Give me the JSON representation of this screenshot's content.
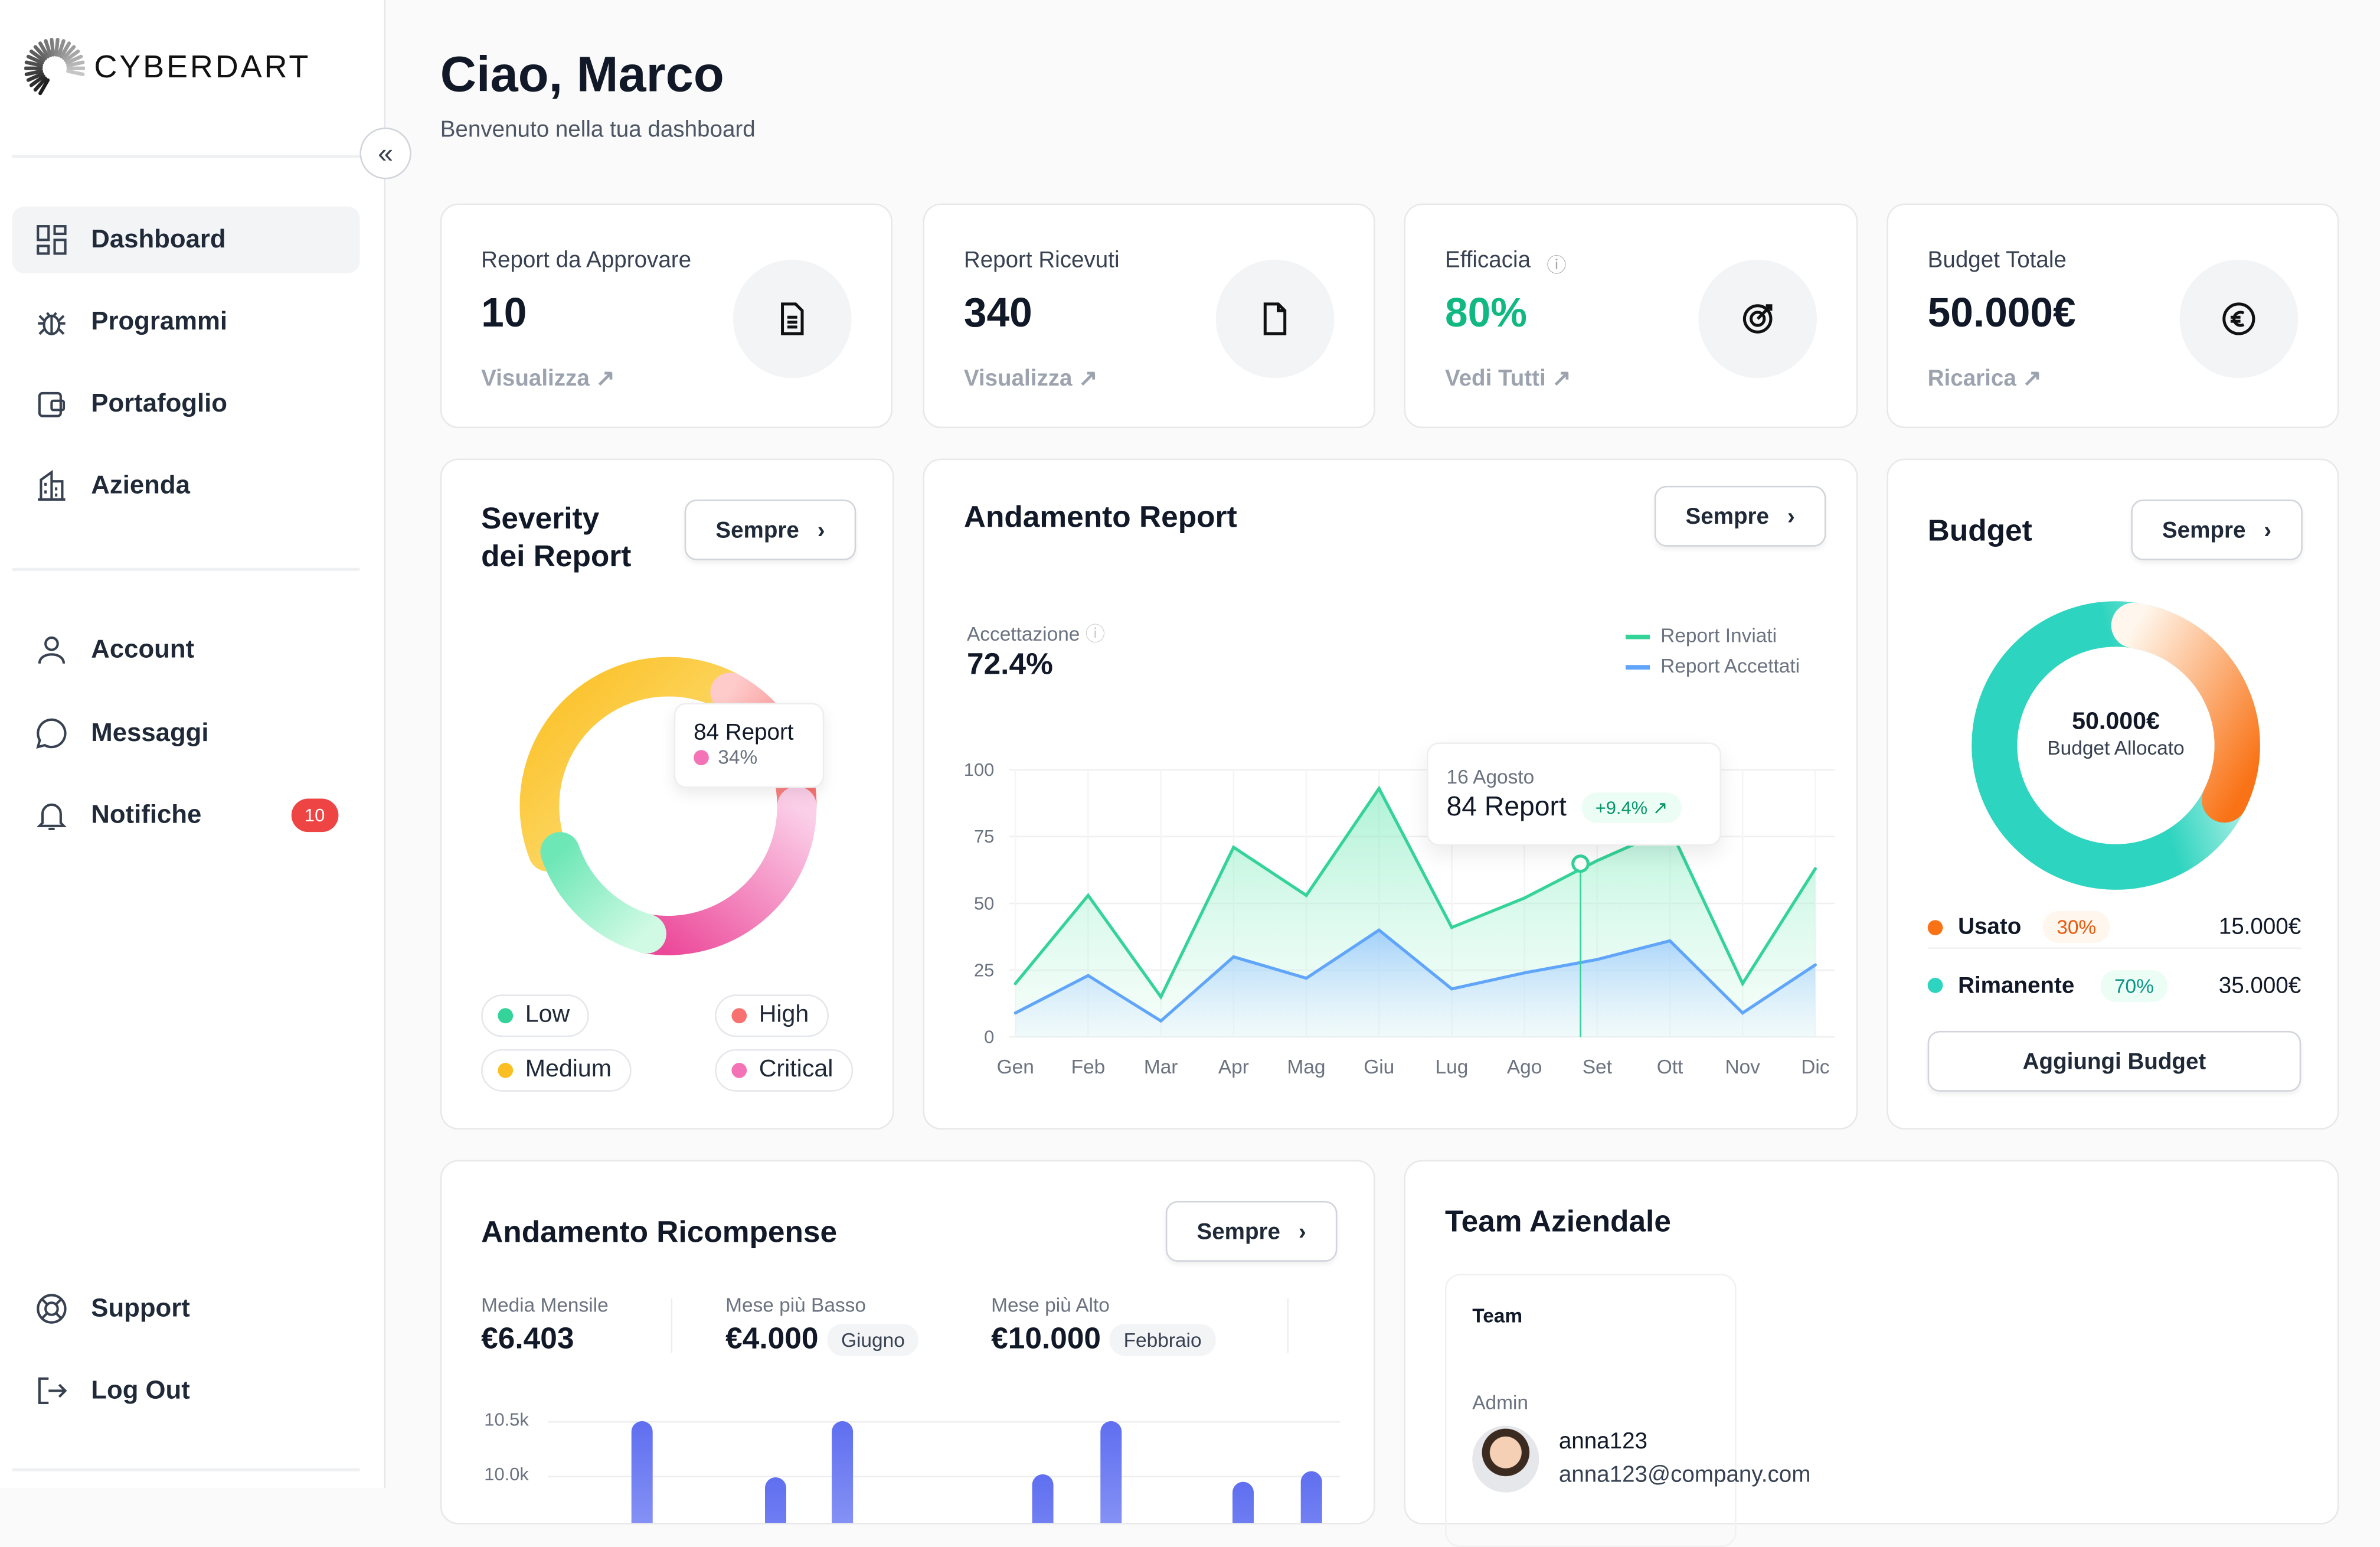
{
  "brand": {
    "logo_text": "CYBERDART"
  },
  "sidebar": {
    "items": [
      {
        "label": "Dashboard",
        "icon": "dashboard-icon"
      },
      {
        "label": "Programmi",
        "icon": "bug-icon"
      },
      {
        "label": "Portafoglio",
        "icon": "wallet-icon"
      },
      {
        "label": "Azienda",
        "icon": "building-icon"
      },
      {
        "label": "Account",
        "icon": "user-icon"
      },
      {
        "label": "Messaggi",
        "icon": "message-icon"
      },
      {
        "label": "Notifiche",
        "icon": "bell-icon",
        "badge": "10"
      },
      {
        "label": "Support",
        "icon": "lifebuoy-icon"
      },
      {
        "label": "Log Out",
        "icon": "logout-icon"
      }
    ]
  },
  "header": {
    "title": "Ciao, Marco",
    "subtitle": "Benvenuto nella tua dashboard"
  },
  "stats": [
    {
      "label": "Report da Approvare",
      "value": "10",
      "link": "Visualizza ↗",
      "icon": "document-text-icon"
    },
    {
      "label": "Report Ricevuti",
      "value": "340",
      "link": "Visualizza ↗",
      "icon": "document-icon"
    },
    {
      "label": "Efficacia",
      "value": "80%",
      "link": "Vedi Tutti ↗",
      "icon": "target-icon",
      "value_color": "#10b981"
    },
    {
      "label": "Budget Totale",
      "value": "50.000€",
      "link": "Ricarica ↗",
      "icon": "euro-icon"
    }
  ],
  "severity": {
    "title_line1": "Severity",
    "title_line2": "dei Report",
    "filter": "Sempre",
    "tooltip": {
      "value": "84 Report",
      "percent": "34%"
    },
    "legend": [
      {
        "label": "Low",
        "color": "#34d399"
      },
      {
        "label": "High",
        "color": "#f87171"
      },
      {
        "label": "Medium",
        "color": "#fbbf24"
      },
      {
        "label": "Critical",
        "color": "#f472b6"
      }
    ]
  },
  "andamento": {
    "title": "Andamento Report",
    "filter": "Sempre",
    "metric_label": "Accettazione",
    "metric_value": "72.4%",
    "tooltip": {
      "date": "16 Agosto",
      "value": "84 Report",
      "change": "+9.4% ↗"
    }
  },
  "chart_data": {
    "type": "area",
    "title": "Andamento Report",
    "categories": [
      "Gen",
      "Feb",
      "Mar",
      "Apr",
      "Mag",
      "Giu",
      "Lug",
      "Ago",
      "Set",
      "Ott",
      "Nov",
      "Dic"
    ],
    "yticks": [
      "0",
      "25",
      "50",
      "75",
      "100"
    ],
    "ylim": [
      0,
      100
    ],
    "legend_position": "top-right",
    "series": [
      {
        "name": "Report Inviati",
        "color": "#34d399",
        "values": [
          20,
          53,
          15,
          71,
          53,
          93,
          41,
          52,
          66,
          78,
          20,
          63
        ]
      },
      {
        "name": "Report Accettati",
        "color": "#60a5fa",
        "values": [
          9,
          23,
          6,
          30,
          22,
          40,
          18,
          24,
          29,
          36,
          9,
          27
        ]
      }
    ]
  },
  "budget": {
    "title": "Budget",
    "filter": "Sempre",
    "center_value": "50.000€",
    "center_label": "Budget Allocato",
    "used_fraction": 0.3,
    "rows": [
      {
        "label": "Usato",
        "percent": "30%",
        "amount": "15.000€",
        "color": "#f97316"
      },
      {
        "label": "Rimanente",
        "percent": "70%",
        "amount": "35.000€",
        "color": "#2dd4bf"
      }
    ],
    "button": "Aggiungi Budget"
  },
  "ricompense": {
    "title": "Andamento Ricompense",
    "filter": "Sempre",
    "stats": [
      {
        "label": "Media Mensile",
        "value": "€6.403"
      },
      {
        "label": "Mese più Basso",
        "value": "€4.000",
        "tag": "Giugno"
      },
      {
        "label": "Mese più Alto",
        "value": "€10.000",
        "tag": "Febbraio"
      }
    ],
    "yticks": [
      "10.5k",
      "10.0k"
    ]
  },
  "team": {
    "title": "Team Aziendale",
    "card_title": "Team",
    "role": "Admin",
    "user": "anna123",
    "email": "anna123@company.com"
  }
}
